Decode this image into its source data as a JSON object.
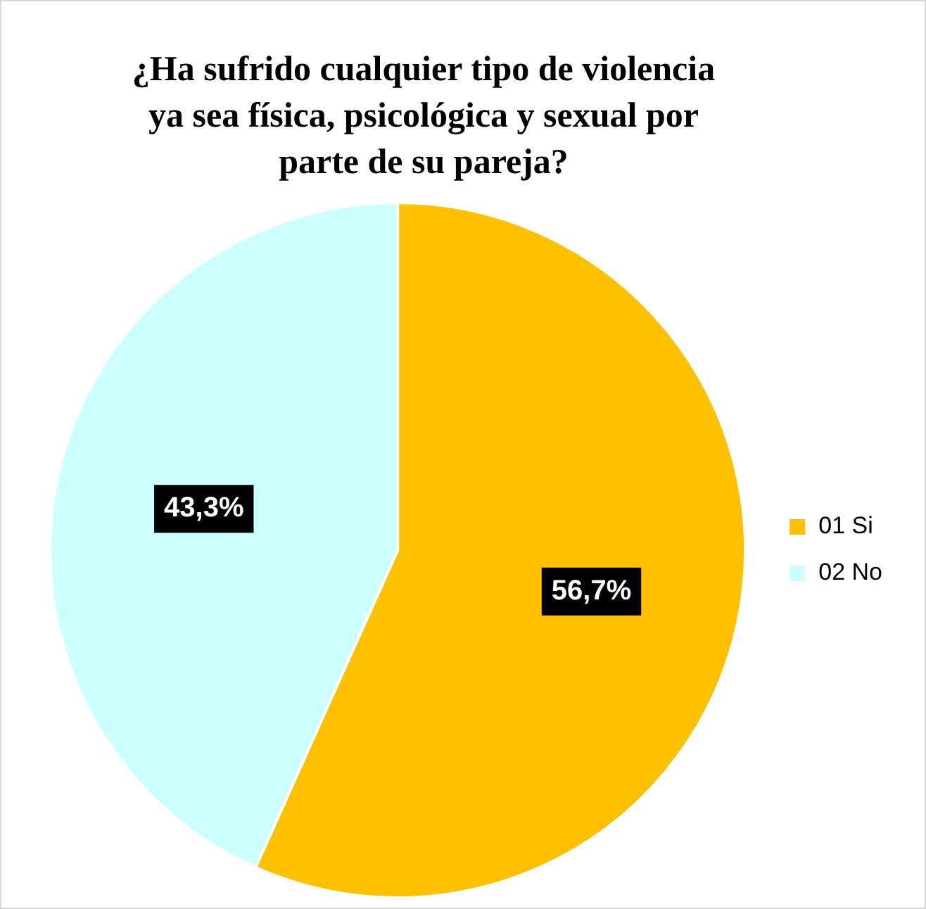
{
  "chart_data": {
    "type": "pie",
    "title": "¿Ha sufrido cualquier tipo de violencia ya sea física, psicológica y sexual por parte de su pareja?",
    "categories": [
      "01 Si",
      "02 No"
    ],
    "values": [
      56.7,
      43.3
    ],
    "colors": [
      "#ffc000",
      "#ccffff"
    ],
    "value_labels": [
      "56,7%",
      "43,3%"
    ],
    "legend": "right"
  }
}
